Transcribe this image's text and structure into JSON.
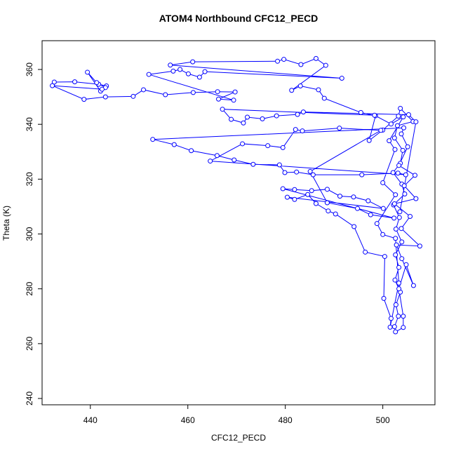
{
  "chart_data": {
    "type": "line",
    "marker": "circle",
    "title": "ATOM4 Northbound CFC12_PECD",
    "x_label": "CFC12_PECD",
    "y_label": "Theta (K)",
    "xlim": [
      430.1,
      510.7
    ],
    "ylim": [
      237.7,
      370.5
    ],
    "xticks": [
      440,
      460,
      480,
      500
    ],
    "yticks": [
      240,
      260,
      280,
      300,
      320,
      340,
      360
    ],
    "grid": false,
    "series": [
      {
        "color": "#0000ff",
        "x": [
          432.6,
          436.8,
          441.7,
          443.3,
          442.1,
          439.4,
          441.3,
          443.1,
          442.4,
          432.2,
          438.7,
          443.1,
          448.8,
          450.9,
          455.4,
          461.1,
          466.1,
          469.7,
          466.3,
          469.4,
          452,
          457,
          458.4,
          460.1,
          462.4,
          463.5,
          491.6,
          456.4,
          461,
          478.4,
          479.7,
          483.2,
          486.3,
          488.3,
          481.3,
          483.1,
          486.8,
          488,
          495.5,
          498.5,
          497.2,
          500,
          503.2,
          503.6,
          506.2,
          503,
          502.4,
          504.1,
          503.6,
          502.1,
          503.9,
          504.5,
          502.2,
          503.4,
          502.7,
          503.9,
          502.6,
          503.3,
          502.5,
          503.6,
          502.7,
          503.2,
          502.4,
          502.6,
          504.2,
          504.2,
          503.3,
          504.8,
          506.3,
          503.9,
          502.8,
          507.6,
          503.8,
          505.6,
          502.4,
          506.8,
          504.4,
          506.6,
          503.3,
          505.1,
          503.8,
          504.3,
          452.8,
          457.2,
          460.7,
          466,
          469.5,
          473.4,
          478.8,
          479.9,
          482.3,
          485.7,
          495.7,
          503.1,
          504.7,
          464.6,
          471.2,
          476.4,
          479.5,
          482.1,
          483.5,
          491.1,
          499.6,
          485.1,
          488.6,
          494.8,
          497.5,
          502.3,
          479.5,
          481.9,
          485.4,
          488.6,
          491.2,
          494,
          497,
          500.1,
          480.4,
          481.9,
          484.6,
          486.3,
          488.8,
          490.3,
          494.1,
          496.4,
          500.4,
          500.2,
          501.7,
          501.5,
          503.3,
          502.6,
          500,
          498.8,
          502.6,
          500,
          502.5,
          501.3,
          504.2,
          501.7,
          498.3,
          467.1,
          468.9,
          471.4,
          472.2,
          475.3,
          478.2,
          482.5,
          483.7,
          505.3,
          506.8,
          503.5
        ],
        "values": [
          355.4,
          355.5,
          354.6,
          354,
          352.1,
          359,
          355.2,
          353.4,
          352.8,
          354.1,
          349.1,
          350,
          350.2,
          352.6,
          350.8,
          351.6,
          351.9,
          351.8,
          349.2,
          348.8,
          358.2,
          359.4,
          360,
          358.4,
          357.2,
          359.2,
          356.8,
          361.6,
          362.8,
          363,
          363.7,
          361.8,
          364,
          361.5,
          352.4,
          354,
          352.6,
          349.5,
          344.3,
          343.1,
          334.1,
          337.9,
          343,
          345.8,
          341,
          339.5,
          335,
          330.5,
          325.8,
          322.4,
          318.2,
          314.6,
          310.6,
          306,
          301.8,
          297.1,
          292.4,
          287.8,
          283.2,
          278.8,
          274.2,
          270,
          266.2,
          264.3,
          265.9,
          270,
          280,
          288.8,
          281.2,
          291,
          296,
          295.6,
          302,
          306.4,
          311,
          312.9,
          317.6,
          321.4,
          325,
          331.8,
          336.5,
          338.7,
          334.5,
          332.6,
          330.4,
          328.6,
          327,
          325.4,
          325.2,
          322.4,
          322.6,
          321.6,
          321.6,
          322.2,
          321.6,
          326.6,
          332.9,
          332.2,
          331.5,
          338.1,
          337.6,
          338.6,
          337.8,
          322.8,
          311.4,
          309.3,
          307,
          305.8,
          316.5,
          316.2,
          315.8,
          316.3,
          313.8,
          313.5,
          312.1,
          309.3,
          313.4,
          312.6,
          314.4,
          311.1,
          308.4,
          307.3,
          302.7,
          293.4,
          291.8,
          276.5,
          269.2,
          266,
          282.1,
          298.4,
          299.8,
          303.8,
          314.3,
          318.7,
          330.8,
          334,
          342.7,
          340.1,
          343.3,
          345.5,
          341.8,
          340.5,
          342.6,
          342,
          343.1,
          343.6,
          344.5,
          343.5,
          340.9,
          308.1
        ]
      }
    ]
  }
}
